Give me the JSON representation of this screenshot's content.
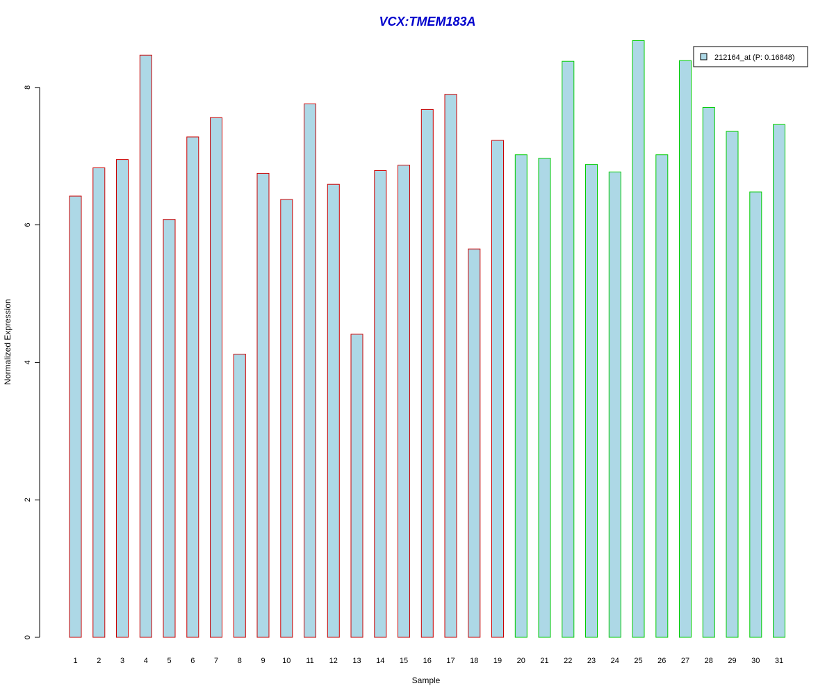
{
  "chart_data": {
    "type": "bar",
    "title": "VCX:TMEM183A",
    "title_color": "#0000cc",
    "xlabel": "Sample",
    "ylabel": "Normalized Expression",
    "ylim": [
      0,
      8.8
    ],
    "yticks": [
      0,
      2,
      4,
      6,
      8
    ],
    "grid": false,
    "bar_fill": "#add8e6",
    "group_colors": {
      "group1": "#cc0000",
      "group2": "#00cc00"
    },
    "categories": [
      "1",
      "2",
      "3",
      "4",
      "5",
      "6",
      "7",
      "8",
      "9",
      "10",
      "11",
      "12",
      "13",
      "14",
      "15",
      "16",
      "17",
      "18",
      "19",
      "20",
      "21",
      "22",
      "23",
      "24",
      "25",
      "26",
      "27",
      "28",
      "29",
      "30",
      "31"
    ],
    "groups": [
      "group1",
      "group1",
      "group1",
      "group1",
      "group1",
      "group1",
      "group1",
      "group1",
      "group1",
      "group1",
      "group1",
      "group1",
      "group1",
      "group1",
      "group1",
      "group1",
      "group1",
      "group1",
      "group1",
      "group2",
      "group2",
      "group2",
      "group2",
      "group2",
      "group2",
      "group2",
      "group2",
      "group2",
      "group2",
      "group2",
      "group2"
    ],
    "series": [
      {
        "name": "212164_at (P: 0.16848)",
        "values": [
          6.42,
          6.83,
          6.95,
          8.47,
          6.08,
          7.28,
          7.56,
          4.12,
          6.75,
          6.37,
          7.76,
          6.59,
          4.41,
          6.79,
          6.87,
          7.68,
          7.9,
          5.65,
          7.23,
          7.02,
          6.97,
          8.38,
          6.88,
          6.77,
          8.68,
          7.02,
          8.39,
          7.71,
          7.36,
          6.48,
          7.46
        ]
      }
    ],
    "legend": {
      "position": "top-right",
      "label": "212164_at (P: 0.16848)"
    }
  }
}
